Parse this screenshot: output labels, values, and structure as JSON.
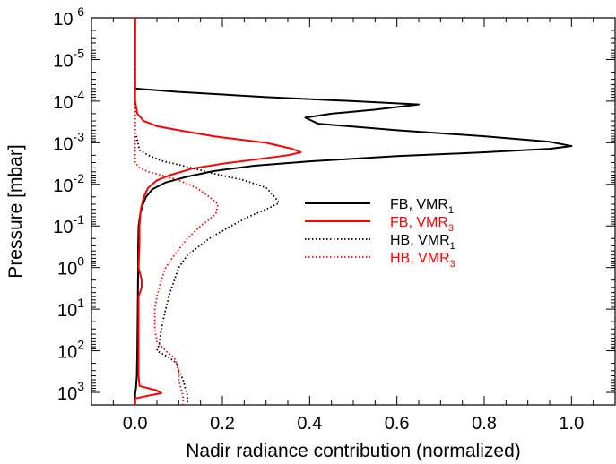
{
  "chart_data": {
    "type": "line",
    "title": "",
    "xlabel": "Nadir radiance contribution (normalized)",
    "ylabel": "Pressure [mbar]",
    "xlim": [
      -0.1,
      1.1
    ],
    "ylim_mbar": [
      1e-06,
      2000
    ],
    "y_scale": "log",
    "y_inverted": true,
    "x_ticks": [
      "0.0",
      "0.2",
      "0.4",
      "0.6",
      "0.8",
      "1.0"
    ],
    "x_tick_values": [
      0,
      0.2,
      0.4,
      0.6,
      0.8,
      1.0
    ],
    "y_ticks": [
      {
        "base": "10",
        "exp": "-6",
        "value": 1e-06
      },
      {
        "base": "10",
        "exp": "-5",
        "value": 1e-05
      },
      {
        "base": "10",
        "exp": "-4",
        "value": 0.0001
      },
      {
        "base": "10",
        "exp": "-3",
        "value": 0.001
      },
      {
        "base": "10",
        "exp": "-2",
        "value": 0.01
      },
      {
        "base": "10",
        "exp": "-1",
        "value": 0.1
      },
      {
        "base": "10",
        "exp": "0",
        "value": 1
      },
      {
        "base": "10",
        "exp": "1",
        "value": 10
      },
      {
        "base": "10",
        "exp": "2",
        "value": 100
      },
      {
        "base": "10",
        "exp": "3",
        "value": 1000
      }
    ],
    "grid": false,
    "legend_position": "right",
    "series": [
      {
        "name": "FB, VMR",
        "name_sub": "1",
        "color": "#000000",
        "dash": "solid",
        "legend_text_color": "#000000",
        "points": [
          [
            0.0,
            1e-06
          ],
          [
            0.0,
            4e-05
          ],
          [
            0.0,
            5e-05
          ],
          [
            0.1,
            6e-05
          ],
          [
            0.3,
            8e-05
          ],
          [
            0.5,
            0.0001
          ],
          [
            0.65,
            0.00012
          ],
          [
            0.55,
            0.00016
          ],
          [
            0.45,
            0.0002
          ],
          [
            0.39,
            0.00025
          ],
          [
            0.42,
            0.00035
          ],
          [
            0.6,
            0.0005
          ],
          [
            0.8,
            0.0007
          ],
          [
            0.95,
            0.00095
          ],
          [
            1.0,
            0.0012
          ],
          [
            0.95,
            0.0014
          ],
          [
            0.8,
            0.0017
          ],
          [
            0.6,
            0.0021
          ],
          [
            0.4,
            0.0028
          ],
          [
            0.27,
            0.0036
          ],
          [
            0.18,
            0.0048
          ],
          [
            0.12,
            0.0065
          ],
          [
            0.07,
            0.009
          ],
          [
            0.04,
            0.013
          ],
          [
            0.025,
            0.02
          ],
          [
            0.018,
            0.03
          ],
          [
            0.012,
            0.05
          ],
          [
            0.008,
            0.1
          ],
          [
            0.007,
            0.3
          ],
          [
            0.007,
            1.0
          ],
          [
            0.006,
            10
          ],
          [
            0.005,
            100
          ],
          [
            0.004,
            400
          ],
          [
            0.002,
            800
          ],
          [
            0.0,
            1100
          ],
          [
            0.0,
            2000
          ]
        ]
      },
      {
        "name": "FB, VMR",
        "name_sub": "3",
        "color": "#ff0000",
        "dash": "solid",
        "legend_text_color": "#ff0000",
        "points": [
          [
            0.0,
            1e-06
          ],
          [
            0.0,
            0.0001
          ],
          [
            0.005,
            0.0002
          ],
          [
            0.02,
            0.0003
          ],
          [
            0.05,
            0.0004
          ],
          [
            0.1,
            0.0005
          ],
          [
            0.18,
            0.0007
          ],
          [
            0.3,
            0.001
          ],
          [
            0.36,
            0.0014
          ],
          [
            0.38,
            0.0017
          ],
          [
            0.35,
            0.002
          ],
          [
            0.28,
            0.0025
          ],
          [
            0.2,
            0.0032
          ],
          [
            0.13,
            0.0042
          ],
          [
            0.08,
            0.006
          ],
          [
            0.05,
            0.008
          ],
          [
            0.03,
            0.012
          ],
          [
            0.02,
            0.02
          ],
          [
            0.013,
            0.04
          ],
          [
            0.01,
            0.1
          ],
          [
            0.01,
            0.3
          ],
          [
            0.008,
            1.0
          ],
          [
            0.015,
            2
          ],
          [
            0.015,
            3
          ],
          [
            0.008,
            5
          ],
          [
            0.008,
            20
          ],
          [
            0.008,
            100
          ],
          [
            0.008,
            400
          ],
          [
            0.01,
            700
          ],
          [
            0.05,
            900
          ],
          [
            0.06,
            1050
          ],
          [
            0.03,
            1200
          ],
          [
            0.0,
            1400
          ],
          [
            0.0,
            2000
          ]
        ]
      },
      {
        "name": "HB, VMR",
        "name_sub": "1",
        "color": "#000000",
        "dash": "dotted",
        "legend_text_color": "#000000",
        "points": [
          [
            0.0,
            1e-06
          ],
          [
            0.0,
            0.0005
          ],
          [
            0.01,
            0.0015
          ],
          [
            0.03,
            0.002
          ],
          [
            0.06,
            0.0027
          ],
          [
            0.09,
            0.0032
          ],
          [
            0.12,
            0.0038
          ],
          [
            0.18,
            0.0055
          ],
          [
            0.25,
            0.008
          ],
          [
            0.3,
            0.012
          ],
          [
            0.32,
            0.02
          ],
          [
            0.33,
            0.028
          ],
          [
            0.3,
            0.04
          ],
          [
            0.26,
            0.06
          ],
          [
            0.22,
            0.1
          ],
          [
            0.17,
            0.2
          ],
          [
            0.12,
            0.5
          ],
          [
            0.1,
            1.0
          ],
          [
            0.09,
            2
          ],
          [
            0.08,
            4
          ],
          [
            0.07,
            10
          ],
          [
            0.06,
            30
          ],
          [
            0.055,
            70
          ],
          [
            0.05,
            100
          ],
          [
            0.08,
            150
          ],
          [
            0.095,
            200
          ],
          [
            0.1,
            300
          ],
          [
            0.11,
            500
          ],
          [
            0.115,
            800
          ],
          [
            0.12,
            1200
          ],
          [
            0.12,
            2000
          ]
        ]
      },
      {
        "name": "HB, VMR",
        "name_sub": "3",
        "color": "#ff0000",
        "dash": "dotted",
        "legend_text_color": "#ff0000",
        "points": [
          [
            0.0,
            1e-06
          ],
          [
            0.0,
            0.003
          ],
          [
            0.01,
            0.004
          ],
          [
            0.03,
            0.005
          ],
          [
            0.06,
            0.006
          ],
          [
            0.1,
            0.008
          ],
          [
            0.14,
            0.012
          ],
          [
            0.17,
            0.02
          ],
          [
            0.19,
            0.03
          ],
          [
            0.185,
            0.05
          ],
          [
            0.17,
            0.07
          ],
          [
            0.15,
            0.1
          ],
          [
            0.12,
            0.2
          ],
          [
            0.09,
            0.5
          ],
          [
            0.07,
            1.0
          ],
          [
            0.06,
            2
          ],
          [
            0.05,
            5
          ],
          [
            0.045,
            10
          ],
          [
            0.045,
            30
          ],
          [
            0.05,
            60
          ],
          [
            0.07,
            100
          ],
          [
            0.09,
            150
          ],
          [
            0.095,
            200
          ],
          [
            0.1,
            300
          ],
          [
            0.1,
            500
          ],
          [
            0.105,
            800
          ],
          [
            0.11,
            1200
          ],
          [
            0.11,
            2000
          ]
        ]
      }
    ]
  }
}
